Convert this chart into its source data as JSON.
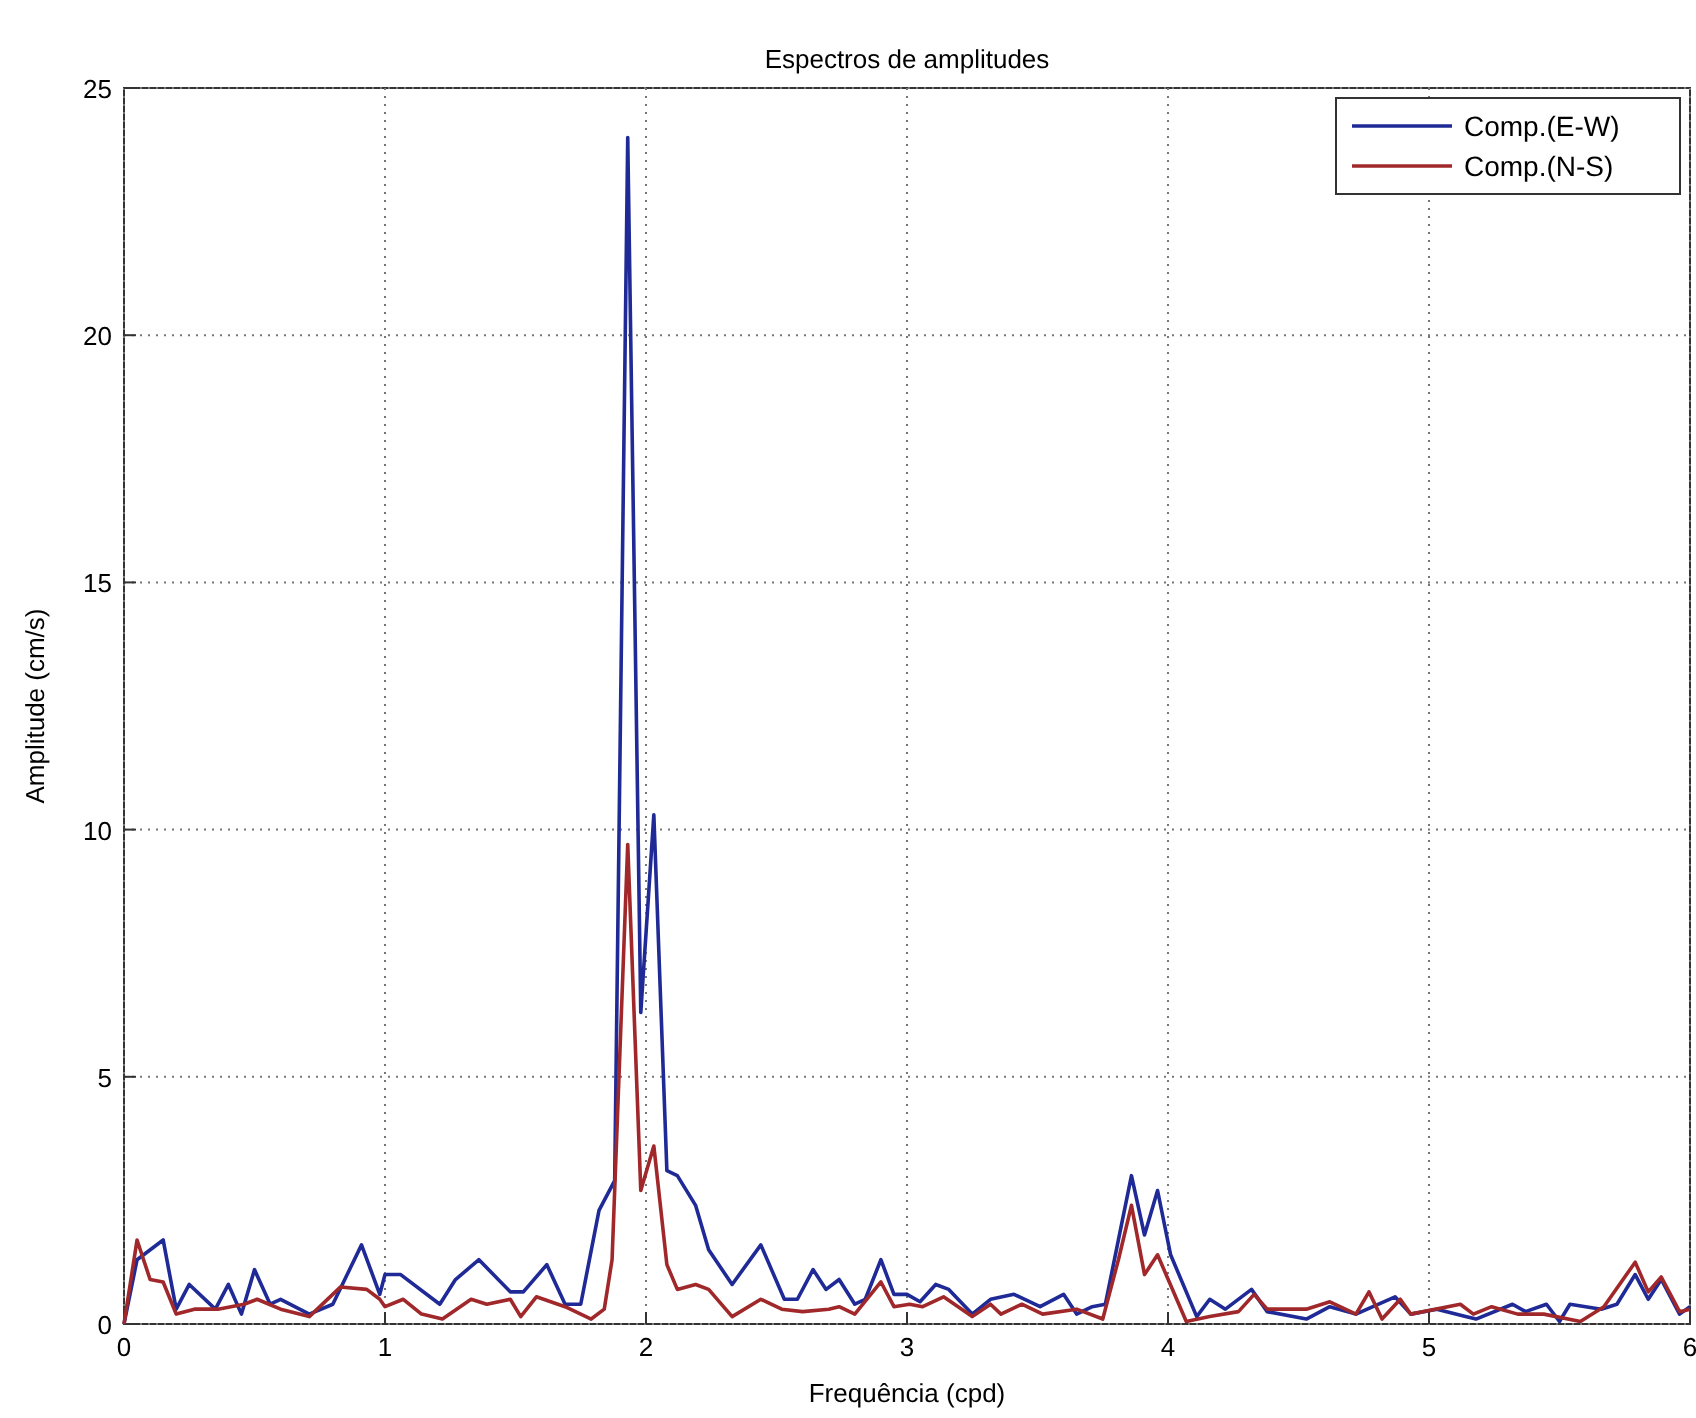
{
  "chart_data": {
    "type": "line",
    "title": "Espectros de amplitudes",
    "xlabel": "Frequência (cpd)",
    "ylabel": "Amplitude (cm/s)",
    "xlim": [
      0,
      6
    ],
    "ylim": [
      0,
      25
    ],
    "xticks": [
      0,
      1,
      2,
      3,
      4,
      5,
      6
    ],
    "yticks": [
      0,
      5,
      10,
      15,
      20,
      25
    ],
    "grid": true,
    "legend": "top right",
    "line_style": "solid",
    "marker": "none",
    "series": [
      {
        "name": "Comp.(E-W)",
        "color": "#1f2a96",
        "x": [
          0,
          0.05,
          0.15,
          0.2,
          0.25,
          0.35,
          0.4,
          0.45,
          0.5,
          0.56,
          0.6,
          0.71,
          0.8,
          0.91,
          0.98,
          1.0,
          1.06,
          1.21,
          1.27,
          1.36,
          1.48,
          1.53,
          1.62,
          1.69,
          1.75,
          1.82,
          1.88,
          1.93,
          1.98,
          2.03,
          2.08,
          2.12,
          2.19,
          2.24,
          2.33,
          2.44,
          2.53,
          2.58,
          2.64,
          2.69,
          2.74,
          2.8,
          2.84,
          2.9,
          2.95,
          3.0,
          3.05,
          3.11,
          3.16,
          3.25,
          3.32,
          3.41,
          3.51,
          3.6,
          3.65,
          3.71,
          3.76,
          3.81,
          3.86,
          3.91,
          3.96,
          4.01,
          4.11,
          4.16,
          4.22,
          4.32,
          4.38,
          4.53,
          4.62,
          4.72,
          4.87,
          4.93,
          5.03,
          5.14,
          5.18,
          5.32,
          5.37,
          5.45,
          5.5,
          5.54,
          5.66,
          5.72,
          5.79,
          5.84,
          5.89,
          5.96,
          6.0
        ],
        "values": [
          0,
          1.3,
          1.7,
          0.3,
          0.8,
          0.3,
          0.8,
          0.2,
          1.1,
          0.4,
          0.5,
          0.2,
          0.4,
          1.6,
          0.6,
          1.0,
          1.0,
          0.4,
          0.9,
          1.3,
          0.65,
          0.65,
          1.2,
          0.4,
          0.4,
          2.3,
          2.9,
          24.0,
          6.3,
          10.3,
          3.1,
          3.0,
          2.4,
          1.5,
          0.8,
          1.6,
          0.5,
          0.5,
          1.1,
          0.7,
          0.9,
          0.4,
          0.5,
          1.3,
          0.6,
          0.6,
          0.45,
          0.8,
          0.7,
          0.2,
          0.5,
          0.6,
          0.35,
          0.6,
          0.2,
          0.35,
          0.4,
          1.7,
          3.0,
          1.8,
          2.7,
          1.4,
          0.15,
          0.5,
          0.3,
          0.7,
          0.25,
          0.1,
          0.35,
          0.2,
          0.55,
          0.2,
          0.3,
          0.15,
          0.1,
          0.4,
          0.25,
          0.4,
          0.05,
          0.4,
          0.3,
          0.4,
          1.0,
          0.5,
          0.9,
          0.2,
          0.35
        ]
      },
      {
        "name": "Comp.(N-S)",
        "color": "#a0282a",
        "x": [
          0,
          0.05,
          0.1,
          0.15,
          0.2,
          0.27,
          0.36,
          0.46,
          0.51,
          0.6,
          0.71,
          0.83,
          0.93,
          0.98,
          1.0,
          1.07,
          1.14,
          1.22,
          1.33,
          1.39,
          1.48,
          1.52,
          1.58,
          1.69,
          1.79,
          1.84,
          1.87,
          1.93,
          1.98,
          2.03,
          2.08,
          2.12,
          2.19,
          2.24,
          2.33,
          2.44,
          2.52,
          2.6,
          2.7,
          2.74,
          2.8,
          2.9,
          2.95,
          3.01,
          3.06,
          3.14,
          3.25,
          3.32,
          3.36,
          3.44,
          3.52,
          3.65,
          3.75,
          3.81,
          3.86,
          3.91,
          3.96,
          4.07,
          4.16,
          4.27,
          4.33,
          4.38,
          4.53,
          4.62,
          4.72,
          4.77,
          4.82,
          4.89,
          4.93,
          5.12,
          5.17,
          5.24,
          5.34,
          5.44,
          5.58,
          5.67,
          5.79,
          5.84,
          5.89,
          5.96,
          6.0
        ],
        "values": [
          0,
          1.7,
          0.9,
          0.85,
          0.2,
          0.3,
          0.3,
          0.4,
          0.5,
          0.3,
          0.15,
          0.75,
          0.7,
          0.5,
          0.35,
          0.5,
          0.2,
          0.1,
          0.5,
          0.4,
          0.5,
          0.15,
          0.55,
          0.35,
          0.1,
          0.3,
          1.3,
          9.7,
          2.7,
          3.6,
          1.2,
          0.7,
          0.8,
          0.7,
          0.15,
          0.5,
          0.3,
          0.25,
          0.3,
          0.35,
          0.2,
          0.85,
          0.35,
          0.4,
          0.35,
          0.55,
          0.15,
          0.4,
          0.2,
          0.4,
          0.2,
          0.3,
          0.1,
          1.3,
          2.4,
          1.0,
          1.4,
          0.05,
          0.15,
          0.25,
          0.6,
          0.3,
          0.3,
          0.45,
          0.2,
          0.65,
          0.1,
          0.5,
          0.2,
          0.4,
          0.2,
          0.35,
          0.2,
          0.2,
          0.05,
          0.35,
          1.25,
          0.65,
          0.95,
          0.25,
          0.3
        ]
      }
    ]
  }
}
